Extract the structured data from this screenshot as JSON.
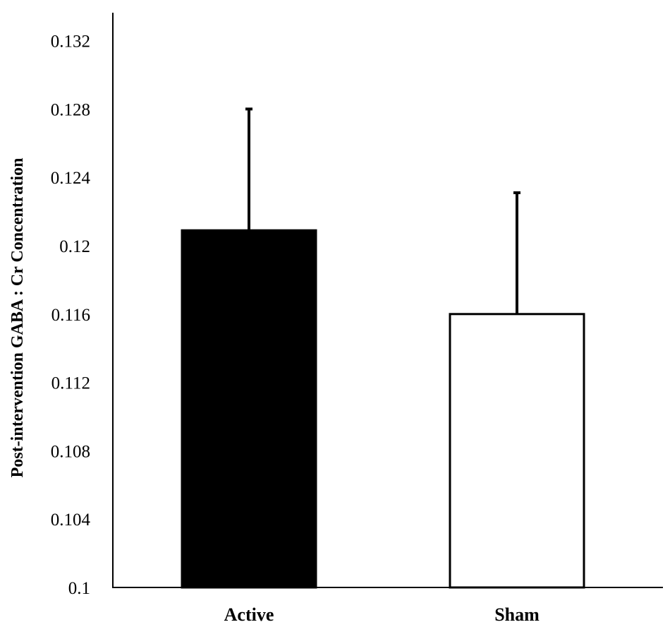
{
  "chart_data": {
    "type": "bar",
    "title": "",
    "xlabel": "",
    "ylabel": "Post-intervention GABA : Cr Concentration",
    "categories": [
      "Active",
      "Sham"
    ],
    "values": [
      0.1209,
      0.116
    ],
    "error_upper": [
      0.128,
      0.1231
    ],
    "bar_colors": [
      "#000000",
      "#ffffff"
    ],
    "ylim": [
      0.1,
      0.1345
    ],
    "yticks": [
      0.1,
      0.104,
      0.108,
      0.112,
      0.116,
      0.12,
      0.124,
      0.128,
      0.132
    ],
    "ytick_labels": [
      "0.1",
      "0.104",
      "0.108",
      "0.112",
      "0.116",
      "0.12",
      "0.124",
      "0.128",
      "0.132"
    ],
    "grid": false,
    "legend": "none"
  }
}
